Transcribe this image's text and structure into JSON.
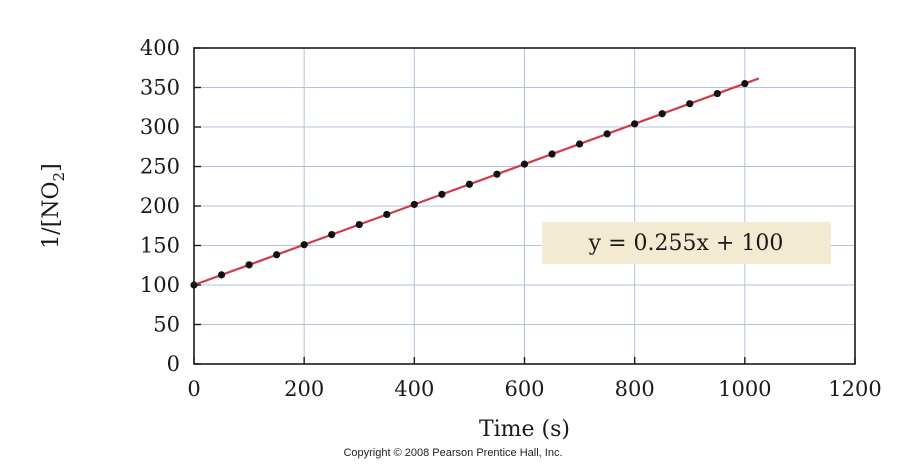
{
  "chart_data": {
    "type": "scatter",
    "title": "",
    "xlabel": "Time (s)",
    "ylabel": "1/[NO",
    "ylabel_sub": "2",
    "ylabel_close": "]",
    "xlim": [
      0,
      1200
    ],
    "ylim": [
      0,
      400
    ],
    "xticks": [
      0,
      200,
      400,
      600,
      800,
      1000,
      1200
    ],
    "yticks": [
      0,
      50,
      100,
      150,
      200,
      250,
      300,
      350,
      400
    ],
    "grid": true,
    "series": [
      {
        "x": [
          0,
          50,
          100,
          150,
          200,
          250,
          300,
          350,
          400,
          450,
          500,
          550,
          600,
          650,
          700,
          750,
          800,
          850,
          900,
          950,
          1000
        ],
        "values": [
          100,
          112.8,
          125.5,
          138.3,
          151,
          163.8,
          176.5,
          189.3,
          202,
          214.8,
          227.5,
          240.3,
          253,
          265.8,
          278.5,
          291.3,
          304,
          316.8,
          329.5,
          342.3,
          355
        ],
        "marker_color": "#111111"
      }
    ],
    "fit_line": {
      "slope": 0.255,
      "intercept": 100,
      "x_range": [
        0,
        1000
      ],
      "color": "#d23a4a"
    },
    "annotation": {
      "text": "y = 0.255x + 100",
      "box_color": "#f3ead2"
    }
  },
  "footer": {
    "copyright": "Copyright © 2008 Pearson Prentice Hall, Inc."
  }
}
